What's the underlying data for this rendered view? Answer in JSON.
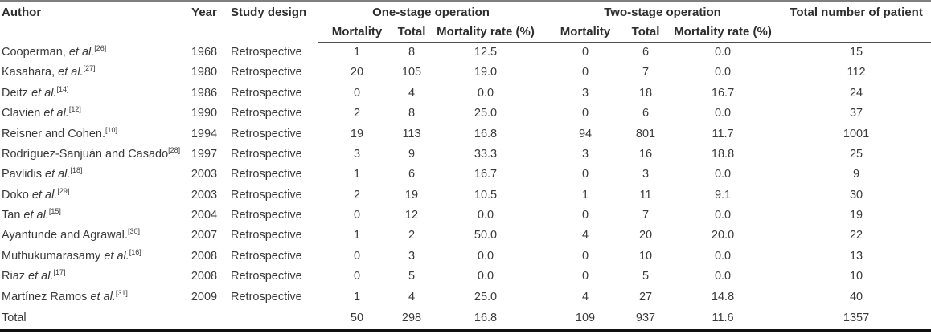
{
  "table": {
    "header": {
      "author": "Author",
      "year": "Year",
      "design": "Study design",
      "one_stage": "One-stage operation",
      "two_stage": "Two-stage operation",
      "total_patients": "Total number of patient",
      "mortality": "Mortality",
      "total": "Total",
      "rate": "Mortality rate (%)"
    },
    "rows": [
      {
        "author": {
          "text": "Cooperman, ",
          "italic": "et al.",
          "cite": "[26]"
        },
        "year": "1968",
        "design": "Retrospective",
        "os_mortality": "1",
        "os_total": "8",
        "os_rate": "12.5",
        "ts_mortality": "0",
        "ts_total": "6",
        "ts_rate": "0.0",
        "patients": "15"
      },
      {
        "author": {
          "text": "Kasahara, ",
          "italic": "et al.",
          "cite": "[27]"
        },
        "year": "1980",
        "design": "Retrospective",
        "os_mortality": "20",
        "os_total": "105",
        "os_rate": "19.0",
        "ts_mortality": "0",
        "ts_total": "7",
        "ts_rate": "0.0",
        "patients": "112"
      },
      {
        "author": {
          "text": "Deitz ",
          "italic": "et al.",
          "cite": "[14]"
        },
        "year": "1986",
        "design": "Retrospective",
        "os_mortality": "0",
        "os_total": "4",
        "os_rate": "0.0",
        "ts_mortality": "3",
        "ts_total": "18",
        "ts_rate": "16.7",
        "patients": "24"
      },
      {
        "author": {
          "text": "Clavien ",
          "italic": "et al.",
          "cite": "[12]"
        },
        "year": "1990",
        "design": "Retrospective",
        "os_mortality": "2",
        "os_total": "8",
        "os_rate": "25.0",
        "ts_mortality": "0",
        "ts_total": "6",
        "ts_rate": "0.0",
        "patients": "37"
      },
      {
        "author": {
          "text": "Reisner and Cohen.",
          "italic": "",
          "cite": "[10]"
        },
        "year": "1994",
        "design": "Retrospective",
        "os_mortality": "19",
        "os_total": "113",
        "os_rate": "16.8",
        "ts_mortality": "94",
        "ts_total": "801",
        "ts_rate": "11.7",
        "patients": "1001"
      },
      {
        "author": {
          "text": "Rodríguez-Sanjuán and Casado",
          "italic": "",
          "cite": "[28]"
        },
        "year": "1997",
        "design": "Retrospective",
        "os_mortality": "3",
        "os_total": "9",
        "os_rate": "33.3",
        "ts_mortality": "3",
        "ts_total": "16",
        "ts_rate": "18.8",
        "patients": "25"
      },
      {
        "author": {
          "text": "Pavlidis ",
          "italic": "et al.",
          "cite": "[18]"
        },
        "year": "2003",
        "design": "Retrospective",
        "os_mortality": "1",
        "os_total": "6",
        "os_rate": "16.7",
        "ts_mortality": "0",
        "ts_total": "3",
        "ts_rate": "0.0",
        "patients": "9"
      },
      {
        "author": {
          "text": "Doko ",
          "italic": "et al.",
          "cite": "[29]"
        },
        "year": "2003",
        "design": "Retrospective",
        "os_mortality": "2",
        "os_total": "19",
        "os_rate": "10.5",
        "ts_mortality": "1",
        "ts_total": "11",
        "ts_rate": "9.1",
        "patients": "30"
      },
      {
        "author": {
          "text": "Tan ",
          "italic": "et al.",
          "cite": "[15]"
        },
        "year": "2004",
        "design": "Retrospective",
        "os_mortality": "0",
        "os_total": "12",
        "os_rate": "0.0",
        "ts_mortality": "0",
        "ts_total": "7",
        "ts_rate": "0.0",
        "patients": "19"
      },
      {
        "author": {
          "text": "Ayantunde and Agrawal.",
          "italic": "",
          "cite": "[30]"
        },
        "year": "2007",
        "design": "Retrospective",
        "os_mortality": "1",
        "os_total": "2",
        "os_rate": "50.0",
        "ts_mortality": "4",
        "ts_total": "20",
        "ts_rate": "20.0",
        "patients": "22"
      },
      {
        "author": {
          "text": "Muthukumarasamy ",
          "italic": "et al.",
          "cite": "[16]"
        },
        "year": "2008",
        "design": "Retrospective",
        "os_mortality": "0",
        "os_total": "3",
        "os_rate": "0.0",
        "ts_mortality": "0",
        "ts_total": "10",
        "ts_rate": "0.0",
        "patients": "13"
      },
      {
        "author": {
          "text": "Riaz ",
          "italic": "et al.",
          "cite": "[17]"
        },
        "year": "2008",
        "design": "Retrospective",
        "os_mortality": "0",
        "os_total": "5",
        "os_rate": "0.0",
        "ts_mortality": "0",
        "ts_total": "5",
        "ts_rate": "0.0",
        "patients": "10"
      },
      {
        "author": {
          "text": "Martínez Ramos ",
          "italic": "et al.",
          "cite": "[31]"
        },
        "year": "2009",
        "design": "Retrospective",
        "os_mortality": "1",
        "os_total": "4",
        "os_rate": "25.0",
        "ts_mortality": "4",
        "ts_total": "27",
        "ts_rate": "14.8",
        "patients": "40"
      }
    ],
    "total_row": {
      "label": "Total",
      "year": "",
      "design": "",
      "os_mortality": "50",
      "os_total": "298",
      "os_rate": "16.8",
      "ts_mortality": "109",
      "ts_total": "937",
      "ts_rate": "11.6",
      "patients": "1357"
    }
  },
  "colors": {
    "text": "#3a3a3a",
    "top_line": "#7f7f7f",
    "header_line": "#4f4f4f",
    "total_separator": "#8c8c8c",
    "bottom_line": "#111111"
  }
}
